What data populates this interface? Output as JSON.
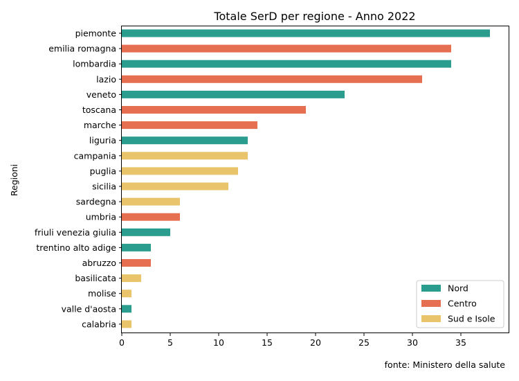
{
  "chart_data": {
    "type": "bar",
    "orientation": "horizontal",
    "title": "Totale SerD per regione - Anno 2022",
    "xlabel": "",
    "ylabel": "Regioni",
    "xlim": [
      0,
      40
    ],
    "xticks": [
      0,
      5,
      10,
      15,
      20,
      25,
      30,
      35
    ],
    "grid": false,
    "legend_position": "lower-right",
    "groups": [
      {
        "name": "Nord",
        "color": "#2a9d8f"
      },
      {
        "name": "Centro",
        "color": "#e76f51"
      },
      {
        "name": "Sud e Isole",
        "color": "#e9c46a"
      }
    ],
    "bars": [
      {
        "region": "piemonte",
        "value": 38,
        "group": "Nord"
      },
      {
        "region": "emilia romagna",
        "value": 34,
        "group": "Centro"
      },
      {
        "region": "lombardia",
        "value": 34,
        "group": "Nord"
      },
      {
        "region": "lazio",
        "value": 31,
        "group": "Centro"
      },
      {
        "region": "veneto",
        "value": 23,
        "group": "Nord"
      },
      {
        "region": "toscana",
        "value": 19,
        "group": "Centro"
      },
      {
        "region": "marche",
        "value": 14,
        "group": "Centro"
      },
      {
        "region": "liguria",
        "value": 13,
        "group": "Nord"
      },
      {
        "region": "campania",
        "value": 13,
        "group": "Sud e Isole"
      },
      {
        "region": "puglia",
        "value": 12,
        "group": "Sud e Isole"
      },
      {
        "region": "sicilia",
        "value": 11,
        "group": "Sud e Isole"
      },
      {
        "region": "sardegna",
        "value": 6,
        "group": "Sud e Isole"
      },
      {
        "region": "umbria",
        "value": 6,
        "group": "Centro"
      },
      {
        "region": "friuli venezia giulia",
        "value": 5,
        "group": "Nord"
      },
      {
        "region": "trentino alto adige",
        "value": 3,
        "group": "Nord"
      },
      {
        "region": "abruzzo",
        "value": 3,
        "group": "Centro"
      },
      {
        "region": "basilicata",
        "value": 2,
        "group": "Sud e Isole"
      },
      {
        "region": "molise",
        "value": 1,
        "group": "Sud e Isole"
      },
      {
        "region": "valle d'aosta",
        "value": 1,
        "group": "Nord"
      },
      {
        "region": "calabria",
        "value": 1,
        "group": "Sud e Isole"
      }
    ]
  },
  "source_note": "fonte: Ministero della salute"
}
